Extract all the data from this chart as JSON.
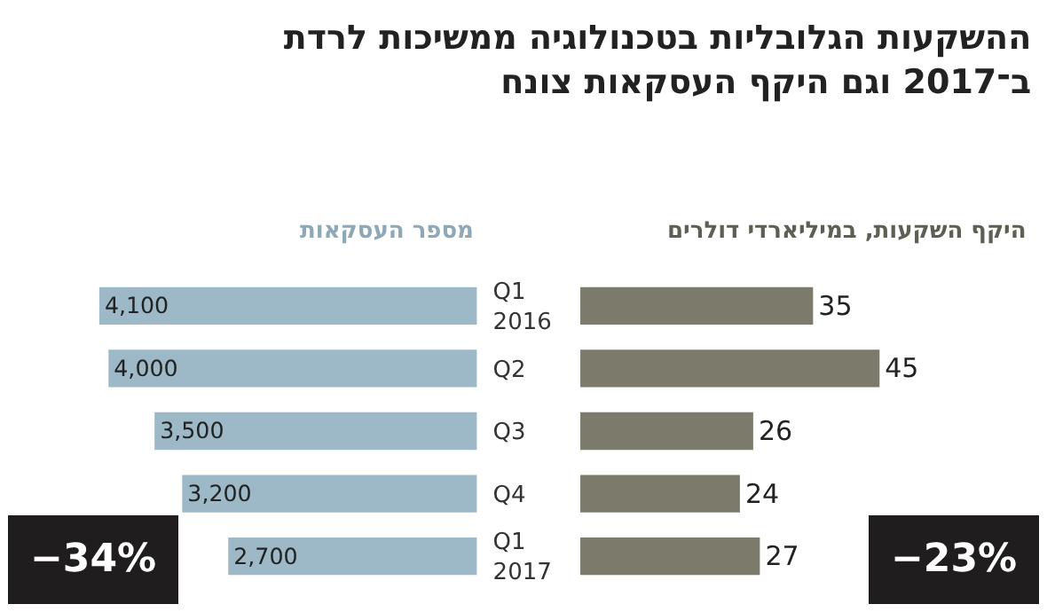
{
  "chart_data": [
    {
      "type": "bar",
      "orientation": "horizontal",
      "title": "ההשקעות הגלובליות בטכנולוגיה ממשיכות לרדת\nב־2017 וגם היקף העסקאות צונח",
      "subtitle": "מספר העסקאות",
      "categories": [
        "Q1\n2016",
        "Q2",
        "Q3",
        "Q4",
        "Q1\n2017"
      ],
      "tick_labels": "y",
      "series": [
        {
          "color": "#9db8c7",
          "values": [
            4100,
            4000,
            3500,
            3200,
            2700
          ],
          "value_labels": [
            "4,100",
            "4,000",
            "3,500",
            "3,200",
            "2,700"
          ]
        }
      ],
      "annotations": [
        "−34%"
      ]
    },
    {
      "type": "bar",
      "orientation": "horizontal",
      "title": "היקף השקעות, במיליארדי דולרים",
      "categories": [
        "Q1\n2016",
        "Q2",
        "Q3",
        "Q4",
        "Q1\n2017"
      ],
      "tick_labels": false,
      "data_labels": true,
      "series": [
        {
          "color": "#7b7a6b",
          "values": [
            35,
            45,
            26,
            24,
            27
          ]
        }
      ],
      "annotations": [
        "−23%"
      ]
    }
  ]
}
